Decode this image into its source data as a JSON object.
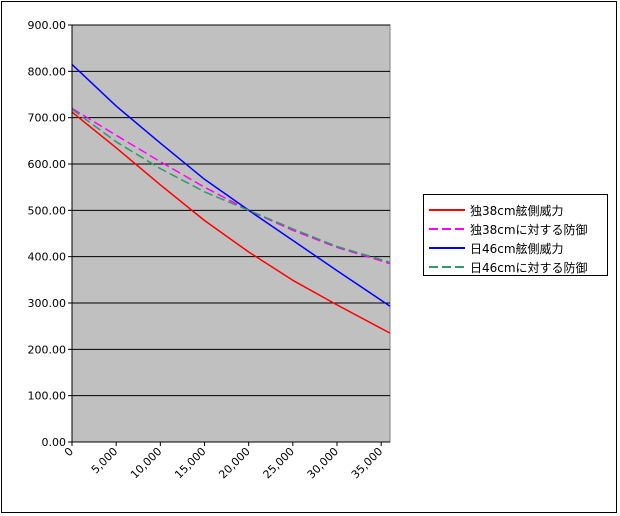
{
  "chart_data": {
    "type": "line",
    "title": "",
    "xlabel": "",
    "ylabel": "",
    "xlim": [
      0,
      36000
    ],
    "ylim": [
      0,
      900
    ],
    "x_ticks": [
      0,
      5000,
      10000,
      15000,
      20000,
      25000,
      30000,
      35000
    ],
    "x_tick_labels": [
      "0",
      "5,000",
      "10,000",
      "15,000",
      "20,000",
      "25,000",
      "30,000",
      "35,000"
    ],
    "y_ticks": [
      0,
      100,
      200,
      300,
      400,
      500,
      600,
      700,
      800,
      900
    ],
    "y_tick_labels": [
      "0.00",
      "100.00",
      "200.00",
      "300.00",
      "400.00",
      "500.00",
      "600.00",
      "700.00",
      "800.00",
      "900.00"
    ],
    "grid": "horizontal",
    "plot_background": "#c0c0c0",
    "legend_position": "right",
    "series": [
      {
        "name": "独38cm舷側威力",
        "color": "#ff0000",
        "dash": "solid",
        "x": [
          0,
          5000,
          10000,
          15000,
          20000,
          25000,
          30000,
          36000
        ],
        "y": [
          712,
          635,
          555,
          478,
          410,
          349,
          296,
          235
        ]
      },
      {
        "name": "独38cmに対する防御",
        "color": "#ff00ff",
        "dash": "dashed",
        "x": [
          0,
          5000,
          10000,
          15000,
          20000,
          25000,
          30000,
          36000
        ],
        "y": [
          720,
          662,
          605,
          550,
          500,
          457,
          420,
          385
        ]
      },
      {
        "name": "日46cm舷側威力",
        "color": "#0000ff",
        "dash": "solid",
        "x": [
          0,
          5000,
          10000,
          15000,
          20000,
          25000,
          30000,
          36000
        ],
        "y": [
          815,
          725,
          645,
          567,
          500,
          435,
          370,
          293
        ]
      },
      {
        "name": "日46cmに対する防御",
        "color": "#339966",
        "dash": "dashed",
        "x": [
          0,
          5000,
          10000,
          15000,
          20000,
          25000,
          30000,
          36000
        ],
        "y": [
          718,
          648,
          590,
          540,
          500,
          460,
          422,
          388
        ]
      }
    ]
  }
}
